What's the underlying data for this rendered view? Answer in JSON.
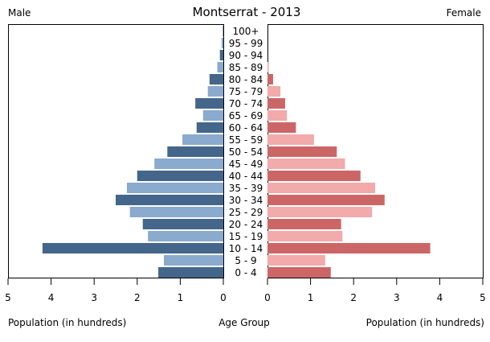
{
  "chart_data": {
    "type": "bar",
    "title": "Montserrat - 2013",
    "left_label": "Male",
    "right_label": "Female",
    "xlabel_left": "Population (in hundreds)",
    "xlabel_center": "Age Group",
    "xlabel_right": "Population (in hundreds)",
    "xlim": [
      0,
      5
    ],
    "xticks": [
      0,
      1,
      2,
      3,
      4,
      5
    ],
    "categories": [
      "0 - 4",
      "5 - 9",
      "10 - 14",
      "15 - 19",
      "20 - 24",
      "25 - 29",
      "30 - 34",
      "35 - 39",
      "40 - 44",
      "45 - 49",
      "50 - 54",
      "55 - 59",
      "60 - 64",
      "65 - 69",
      "70 - 74",
      "75 - 79",
      "80 - 84",
      "85 - 89",
      "90 - 94",
      "95 - 99",
      "100+"
    ],
    "series": [
      {
        "name": "Male",
        "values": [
          1.51,
          1.38,
          4.2,
          1.75,
          1.87,
          2.17,
          2.5,
          2.24,
          2.0,
          1.6,
          1.3,
          0.95,
          0.62,
          0.47,
          0.65,
          0.36,
          0.32,
          0.14,
          0.08,
          0.04,
          0.01
        ],
        "colors": [
          "#44668a",
          "#8aaace"
        ]
      },
      {
        "name": "Female",
        "values": [
          1.47,
          1.34,
          3.78,
          1.74,
          1.71,
          2.43,
          2.72,
          2.5,
          2.16,
          1.8,
          1.61,
          1.08,
          0.66,
          0.45,
          0.41,
          0.3,
          0.13,
          0.03,
          0.0,
          0.0,
          0.0
        ],
        "colors": [
          "#cc6666",
          "#f2aaaa"
        ]
      }
    ]
  }
}
